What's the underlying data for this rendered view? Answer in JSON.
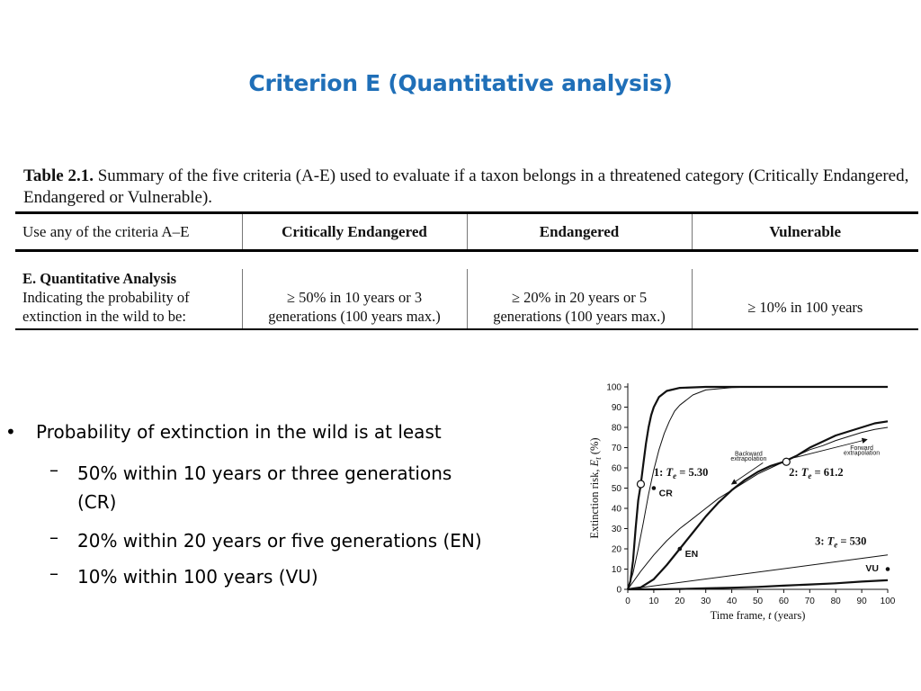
{
  "slide": {
    "title": "Criterion E (Quantitative analysis)"
  },
  "table": {
    "caption_bold": "Table 2.1.",
    "caption_rest": " Summary of the five criteria (A-E) used to evaluate if a taxon belongs in a threatened category (Critically Endangered, Endangered or Vulnerable).",
    "header": {
      "label": "Use any of the criteria A–E",
      "cr": "Critically Endangered",
      "en": "Endangered",
      "vu": "Vulnerable"
    },
    "row": {
      "section": "E. Quantitative Analysis",
      "label_line1": "Indicating  the  probability  of",
      "label_line2": "extinction in the wild to be:",
      "cr_line1": "≥ 50% in 10 years or 3",
      "cr_line2": "generations (100 years max.)",
      "en_line1": "≥ 20% in 20 years or 5",
      "en_line2": "generations (100 years max.)",
      "vu": "≥ 10% in 100 years"
    }
  },
  "bullets": {
    "main": "Probability of extinction in the wild is at least",
    "sub": [
      {
        "line1": "50% within 10 years or three generations",
        "line2": "(CR)"
      },
      {
        "line1": "20% within 20 years or five generations (EN)"
      },
      {
        "line1": "10% within 100 years (VU)"
      }
    ]
  },
  "chart_data": {
    "type": "line",
    "xlabel_main": "Time frame, ",
    "xlabel_var": "t",
    "xlabel_unit": "  (years)",
    "ylabel_main": "Extinction risk, ",
    "ylabel_var": "E",
    "ylabel_sub": "t",
    "ylabel_unit": "  (%)",
    "xlim": [
      0,
      100
    ],
    "ylim": [
      0,
      100
    ],
    "x_ticks": [
      0,
      10,
      20,
      30,
      40,
      50,
      60,
      70,
      80,
      90,
      100
    ],
    "y_ticks": [
      0,
      10,
      20,
      30,
      40,
      50,
      60,
      70,
      80,
      90,
      100
    ],
    "curves": [
      {
        "id": "cr-thick",
        "width": 2.2,
        "points": [
          [
            0,
            0
          ],
          [
            1,
            4
          ],
          [
            2,
            14
          ],
          [
            3,
            30
          ],
          [
            4,
            44
          ],
          [
            5,
            52
          ],
          [
            6,
            62
          ],
          [
            7,
            72
          ],
          [
            8,
            80
          ],
          [
            9,
            86
          ],
          [
            10,
            90
          ],
          [
            12,
            95
          ],
          [
            15,
            98
          ],
          [
            20,
            99.5
          ],
          [
            30,
            100
          ],
          [
            100,
            100
          ]
        ]
      },
      {
        "id": "cr-thin",
        "width": 1.0,
        "points": [
          [
            0,
            0
          ],
          [
            2,
            8
          ],
          [
            4,
            20
          ],
          [
            6,
            33
          ],
          [
            8,
            47
          ],
          [
            10,
            59
          ],
          [
            12,
            69
          ],
          [
            14,
            77
          ],
          [
            16,
            83
          ],
          [
            18,
            88
          ],
          [
            20,
            91
          ],
          [
            25,
            96
          ],
          [
            30,
            98.5
          ],
          [
            40,
            99.7
          ],
          [
            50,
            100
          ],
          [
            100,
            100
          ]
        ]
      },
      {
        "id": "en-thick",
        "width": 2.2,
        "points": [
          [
            0,
            0
          ],
          [
            5,
            1
          ],
          [
            10,
            5
          ],
          [
            15,
            12
          ],
          [
            20,
            20
          ],
          [
            25,
            28
          ],
          [
            30,
            36
          ],
          [
            35,
            43
          ],
          [
            40,
            49
          ],
          [
            45,
            54
          ],
          [
            50,
            58
          ],
          [
            55,
            61
          ],
          [
            60,
            63
          ],
          [
            65,
            66
          ],
          [
            70,
            70
          ],
          [
            75,
            73
          ],
          [
            80,
            76
          ],
          [
            85,
            78
          ],
          [
            90,
            80
          ],
          [
            95,
            82
          ],
          [
            100,
            83
          ]
        ]
      },
      {
        "id": "en-thin",
        "width": 1.0,
        "points": [
          [
            0,
            0
          ],
          [
            5,
            9
          ],
          [
            10,
            17
          ],
          [
            15,
            24
          ],
          [
            20,
            30
          ],
          [
            25,
            35
          ],
          [
            30,
            40
          ],
          [
            35,
            45
          ],
          [
            40,
            49
          ],
          [
            45,
            53
          ],
          [
            50,
            57
          ],
          [
            55,
            60
          ],
          [
            60,
            63
          ],
          [
            65,
            66
          ],
          [
            70,
            69
          ],
          [
            75,
            71
          ],
          [
            80,
            73.5
          ],
          [
            85,
            75.5
          ],
          [
            90,
            77.5
          ],
          [
            95,
            79
          ],
          [
            100,
            80
          ]
        ]
      },
      {
        "id": "vu-thin",
        "width": 1.0,
        "points": [
          [
            0,
            0
          ],
          [
            100,
            17
          ]
        ]
      },
      {
        "id": "vu-thick",
        "width": 2.2,
        "points": [
          [
            0,
            0
          ],
          [
            10,
            0
          ],
          [
            20,
            0.2
          ],
          [
            30,
            0.5
          ],
          [
            40,
            0.8
          ],
          [
            50,
            1.2
          ],
          [
            60,
            1.8
          ],
          [
            70,
            2.4
          ],
          [
            80,
            3
          ],
          [
            90,
            3.8
          ],
          [
            100,
            4.5
          ]
        ]
      }
    ],
    "markers": [
      {
        "id": "cr-open-circle",
        "kind": "open",
        "x": 5,
        "y": 52
      },
      {
        "id": "en-open-circle",
        "kind": "open",
        "x": 61,
        "y": 63
      },
      {
        "id": "cr-dot",
        "kind": "filled",
        "x": 10,
        "y": 50
      },
      {
        "id": "en-dot",
        "kind": "filled",
        "x": 20,
        "y": 20
      },
      {
        "id": "vu-dot",
        "kind": "filled",
        "x": 100,
        "y": 10
      }
    ],
    "annotations": [
      {
        "id": "ann-cr-te",
        "x": 10,
        "y": 56,
        "num": "1: ",
        "var": "T",
        "sub": "e",
        "rest": " = 5.30",
        "bold": true
      },
      {
        "id": "ann-en-te",
        "x": 62,
        "y": 56,
        "num": "2: ",
        "var": "T",
        "sub": "e",
        "rest": " = 61.2",
        "bold": true
      },
      {
        "id": "ann-vu-te",
        "x": 72,
        "y": 22,
        "num": "3: ",
        "var": "T",
        "sub": "e",
        "rest": " = 530",
        "bold": true
      },
      {
        "id": "ann-cr",
        "x": 12,
        "y": 46,
        "text": "CR",
        "bold": true
      },
      {
        "id": "ann-en",
        "x": 22,
        "y": 16,
        "text": "EN",
        "bold": true
      },
      {
        "id": "ann-vu",
        "x": 91.5,
        "y": 9,
        "text": "VU",
        "bold": true
      },
      {
        "id": "ann-backward-1",
        "x": 46.5,
        "y": 66,
        "text": "Backward",
        "small": true
      },
      {
        "id": "ann-backward-2",
        "x": 46.5,
        "y": 63.5,
        "text": "extrapolation",
        "small": true
      },
      {
        "id": "ann-forward-1",
        "x": 90,
        "y": 69,
        "text": "Forward",
        "small": true
      },
      {
        "id": "ann-forward-2",
        "x": 90,
        "y": 66.5,
        "text": "extrapolation",
        "small": true
      }
    ],
    "arrows": [
      {
        "id": "backward-arrow",
        "from": [
          52,
          62.5
        ],
        "to": [
          40,
          52
        ]
      },
      {
        "id": "forward-arrow",
        "from": [
          64,
          65
        ],
        "to": [
          92,
          74
        ]
      }
    ]
  }
}
